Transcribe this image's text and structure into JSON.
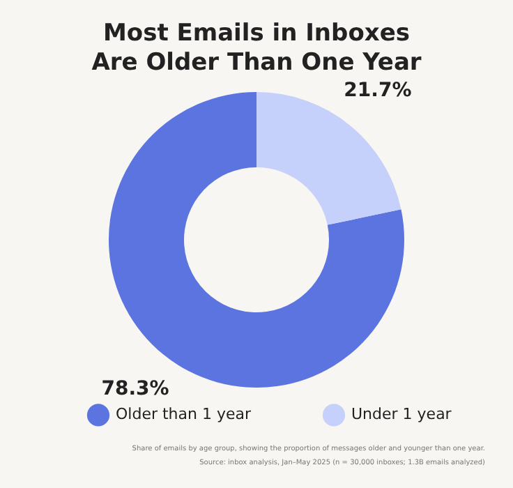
{
  "chart_data": {
    "type": "donut",
    "title": "Most Emails in Inboxes Are Older Than One Year",
    "categories": [
      "Older than 1 year",
      "Under 1 year"
    ],
    "values": [
      78.3,
      21.7
    ],
    "colors": [
      "#5b74e0",
      "#c6d1fb"
    ],
    "value_labels": [
      "78.3%",
      "21.7%"
    ],
    "legend": "bottom",
    "annotations": [
      "Share of emails by age group, showing the proportion of messages older and younger than one year.",
      "Source: inbox analysis, Jan–May 2025 (n = 30,000 inboxes; 1.3B emails analyzed)"
    ]
  }
}
